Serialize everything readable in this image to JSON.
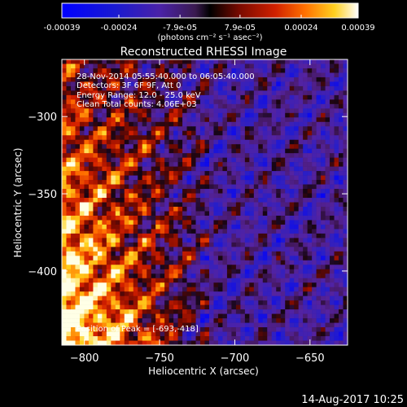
{
  "colorbar": {
    "tick_labels": [
      "-0.00039",
      "-0.00024",
      "-7.9e-05",
      "7.9e-05",
      "0.00024",
      "0.00039"
    ],
    "ticks": [
      -0.00039,
      -0.00024,
      -7.9e-05,
      7.9e-05,
      0.00024,
      0.00039
    ],
    "range": [
      -0.00039,
      0.00039
    ],
    "units_label": "(photons cm⁻² s⁻¹ asec⁻²)"
  },
  "chart_data": {
    "type": "heatmap",
    "title": "Reconstructed RHESSI Image",
    "xlabel": "Heliocentric X (arcsec)",
    "ylabel": "Heliocentric Y (arcsec)",
    "xlim": [
      -815,
      -625
    ],
    "ylim": [
      -448,
      -263
    ],
    "x_ticks": [
      -800,
      -750,
      -700,
      -650
    ],
    "y_ticks": [
      -300,
      -350,
      -400
    ],
    "x_tick_labels": [
      "−800",
      "−750",
      "−700",
      "−650"
    ],
    "y_tick_labels": [
      "−300",
      "−350",
      "−400"
    ],
    "annotations": [
      "28-Nov-2014 05:55:40.000 to 06:05:40.000",
      "Detectors: 3F 6F 9F, Att 0",
      "Energy Range: 12.0 - 25.0 keV",
      "Clean    Total counts: 4.06E+03"
    ],
    "peak_label": "Position of Peak = [-693,-418]",
    "peak": [
      -693,
      -418
    ]
  },
  "footer": {
    "date": "14-Aug-2017 10:25"
  },
  "colors": {
    "background": "#000000",
    "text": "#ffffff"
  }
}
